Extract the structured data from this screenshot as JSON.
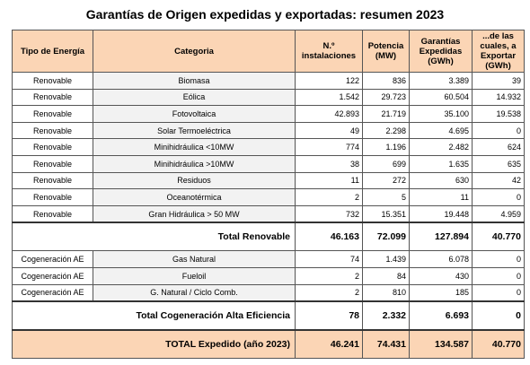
{
  "header": {
    "title": "Garantías de Origen expedidas y exportadas: resumen 2023"
  },
  "table": {
    "columns": [
      "Tipo de Energía",
      "Categoria",
      "N.º instalaciones",
      "Potencia (MW)",
      "Garantías Expedidas (GWh)",
      "...de las cuales, a Exportar (GWh)"
    ],
    "rows": [
      [
        "Renovable",
        "Biomasa",
        "122",
        "836",
        "3.389",
        "39"
      ],
      [
        "Renovable",
        "Eólica",
        "1.542",
        "29.723",
        "60.504",
        "14.932"
      ],
      [
        "Renovable",
        "Fotovoltaica",
        "42.893",
        "21.719",
        "35.100",
        "19.538"
      ],
      [
        "Renovable",
        "Solar Termoeléctrica",
        "49",
        "2.298",
        "4.695",
        "0"
      ],
      [
        "Renovable",
        "Minihidráulica <10MW",
        "774",
        "1.196",
        "2.482",
        "624"
      ],
      [
        "Renovable",
        "Minihidráulica >10MW",
        "38",
        "699",
        "1.635",
        "635"
      ],
      [
        "Renovable",
        "Residuos",
        "11",
        "272",
        "630",
        "42"
      ],
      [
        "Renovable",
        "Oceanotérmica",
        "2",
        "5",
        "11",
        "0"
      ],
      [
        "Renovable",
        "Gran Hidráulica > 50 MW",
        "732",
        "15.351",
        "19.448",
        "4.959"
      ],
      {
        "label": "Total Renovable",
        "values": [
          "46.163",
          "72.099",
          "127.894",
          "40.770"
        ]
      },
      [
        "Cogeneración AE",
        "Gas Natural",
        "74",
        "1.439",
        "6.078",
        "0"
      ],
      [
        "Cogeneración AE",
        "Fueloil",
        "2",
        "84",
        "430",
        "0"
      ],
      [
        "Cogeneración AE",
        "G. Natural / Ciclo  Comb.",
        "2",
        "810",
        "185",
        "0"
      ],
      {
        "label": "Total Cogeneración Alta Eficiencia",
        "values": [
          "78",
          "2.332",
          "6.693",
          "0"
        ]
      },
      {
        "label": "TOTAL Expedido (año 2023)",
        "values": [
          "46.241",
          "74.431",
          "134.587",
          "40.770"
        ]
      }
    ]
  }
}
